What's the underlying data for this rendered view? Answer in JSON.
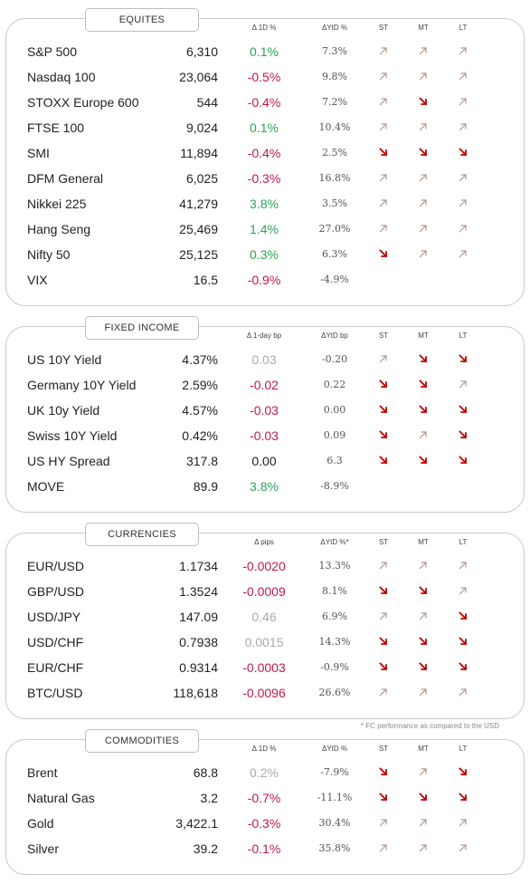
{
  "colors": {
    "positive": "#2aa35a",
    "negative": "#c0184a",
    "neutral": "#aaaaaa",
    "arrow_up": "#b09a90",
    "arrow_down": "#c00000",
    "panel_border": "#c8c8c8"
  },
  "sections": [
    {
      "title": "EQUITES",
      "headers": {
        "d1": "Δ 1D %",
        "ytd": "ΔYtD %",
        "st": "ST",
        "mt": "MT",
        "lt": "LT"
      },
      "rows": [
        {
          "name": "S&P 500",
          "value": "6,310",
          "d1": "0.1%",
          "d1_tone": "pos",
          "ytd": "7.3%",
          "st": "up",
          "mt": "up",
          "lt": "up"
        },
        {
          "name": "Nasdaq 100",
          "value": "23,064",
          "d1": "-0.5%",
          "d1_tone": "neg",
          "ytd": "9.8%",
          "st": "up",
          "mt": "up",
          "lt": "up"
        },
        {
          "name": "STOXX Europe 600",
          "value": "544",
          "d1": "-0.4%",
          "d1_tone": "neg",
          "ytd": "7.2%",
          "st": "up",
          "mt": "down",
          "lt": "up"
        },
        {
          "name": "FTSE 100",
          "value": "9,024",
          "d1": "0.1%",
          "d1_tone": "pos",
          "ytd": "10.4%",
          "st": "up",
          "mt": "up",
          "lt": "up"
        },
        {
          "name": "SMI",
          "value": "11,894",
          "d1": "-0.4%",
          "d1_tone": "neg",
          "ytd": "2.5%",
          "st": "down",
          "mt": "down",
          "lt": "down"
        },
        {
          "name": "DFM General",
          "value": "6,025",
          "d1": "-0.3%",
          "d1_tone": "neg",
          "ytd": "16.8%",
          "st": "up",
          "mt": "up",
          "lt": "up"
        },
        {
          "name": "Nikkei 225",
          "value": "41,279",
          "d1": "3.8%",
          "d1_tone": "pos",
          "ytd": "3.5%",
          "st": "up",
          "mt": "up",
          "lt": "up"
        },
        {
          "name": "Hang Seng",
          "value": "25,469",
          "d1": "1.4%",
          "d1_tone": "pos",
          "ytd": "27.0%",
          "st": "up",
          "mt": "up",
          "lt": "up"
        },
        {
          "name": "Nifty 50",
          "value": "25,125",
          "d1": "0.3%",
          "d1_tone": "pos",
          "ytd": "6.3%",
          "st": "down",
          "mt": "up",
          "lt": "up"
        },
        {
          "name": "VIX",
          "value": "16.5",
          "d1": "-0.9%",
          "d1_tone": "neg",
          "ytd": "-4.9%",
          "st": "",
          "mt": "",
          "lt": ""
        }
      ]
    },
    {
      "title": "FIXED INCOME",
      "headers": {
        "d1": "Δ 1-day bp",
        "ytd": "ΔYtD bp",
        "st": "ST",
        "mt": "MT",
        "lt": "LT"
      },
      "rows": [
        {
          "name": "US 10Y Yield",
          "value": "4.37%",
          "d1": "0.03",
          "d1_tone": "neu",
          "ytd": "-0.20",
          "st": "up",
          "mt": "down",
          "lt": "down"
        },
        {
          "name": "Germany 10Y Yield",
          "value": "2.59%",
          "d1": "-0.02",
          "d1_tone": "neg",
          "ytd": "0.22",
          "st": "down",
          "mt": "down",
          "lt": "up"
        },
        {
          "name": "UK 10y Yield",
          "value": "4.57%",
          "d1": "-0.03",
          "d1_tone": "neg",
          "ytd": "0.00",
          "st": "down",
          "mt": "down",
          "lt": "down"
        },
        {
          "name": "Swiss 10Y Yield",
          "value": "0.42%",
          "d1": "-0.03",
          "d1_tone": "neg",
          "ytd": "0.09",
          "st": "down",
          "mt": "up",
          "lt": "down"
        },
        {
          "name": "US HY Spread",
          "value": "317.8",
          "d1": "0.00",
          "d1_tone": "flat",
          "ytd": "6.3",
          "st": "down",
          "mt": "down",
          "lt": "down"
        },
        {
          "name": "MOVE",
          "value": "89.9",
          "d1": "3.8%",
          "d1_tone": "pos",
          "ytd": "-8.9%",
          "st": "",
          "mt": "",
          "lt": ""
        }
      ]
    },
    {
      "title": "CURRENCIES",
      "headers": {
        "d1": "Δ pips",
        "ytd": "ΔYtD %*",
        "st": "ST",
        "mt": "MT",
        "lt": "LT"
      },
      "rows": [
        {
          "name": "EUR/USD",
          "value": "1.1734",
          "d1": "-0.0020",
          "d1_tone": "neg",
          "ytd": "13.3%",
          "st": "up",
          "mt": "up",
          "lt": "up"
        },
        {
          "name": "GBP/USD",
          "value": "1.3524",
          "d1": "-0.0009",
          "d1_tone": "neg",
          "ytd": "8.1%",
          "st": "down",
          "mt": "down",
          "lt": "up"
        },
        {
          "name": "USD/JPY",
          "value": "147.09",
          "d1": "0.46",
          "d1_tone": "neu",
          "ytd": "6.9%",
          "st": "up",
          "mt": "up",
          "lt": "down"
        },
        {
          "name": "USD/CHF",
          "value": "0.7938",
          "d1": "0.0015",
          "d1_tone": "neu",
          "ytd": "14.3%",
          "st": "down",
          "mt": "down",
          "lt": "down"
        },
        {
          "name": "EUR/CHF",
          "value": "0.9314",
          "d1": "-0.0003",
          "d1_tone": "neg",
          "ytd": "-0.9%",
          "st": "down",
          "mt": "down",
          "lt": "down"
        },
        {
          "name": "BTC/USD",
          "value": "118,618",
          "d1": "-0.0096",
          "d1_tone": "neg",
          "ytd": "26.6%",
          "st": "up",
          "mt": "up",
          "lt": "up"
        }
      ]
    },
    {
      "title": "COMMODITIES",
      "headers": {
        "d1": "Δ 1D %",
        "ytd": "ΔYtD %",
        "st": "ST",
        "mt": "MT",
        "lt": "LT"
      },
      "rows": [
        {
          "name": "Brent",
          "value": "68.8",
          "d1": "0.2%",
          "d1_tone": "neu",
          "ytd": "-7.9%",
          "st": "down",
          "mt": "up",
          "lt": "down"
        },
        {
          "name": "Natural Gas",
          "value": "3.2",
          "d1": "-0.7%",
          "d1_tone": "neg",
          "ytd": "-11.1%",
          "st": "down",
          "mt": "down",
          "lt": "down"
        },
        {
          "name": "Gold",
          "value": "3,422.1",
          "d1": "-0.3%",
          "d1_tone": "neg",
          "ytd": "30.4%",
          "st": "up",
          "mt": "up",
          "lt": "up"
        },
        {
          "name": "Silver",
          "value": "39.2",
          "d1": "-0.1%",
          "d1_tone": "neg",
          "ytd": "35.8%",
          "st": "up",
          "mt": "up",
          "lt": "up"
        }
      ]
    }
  ],
  "footnote": "* FC performance as compared to the USD"
}
